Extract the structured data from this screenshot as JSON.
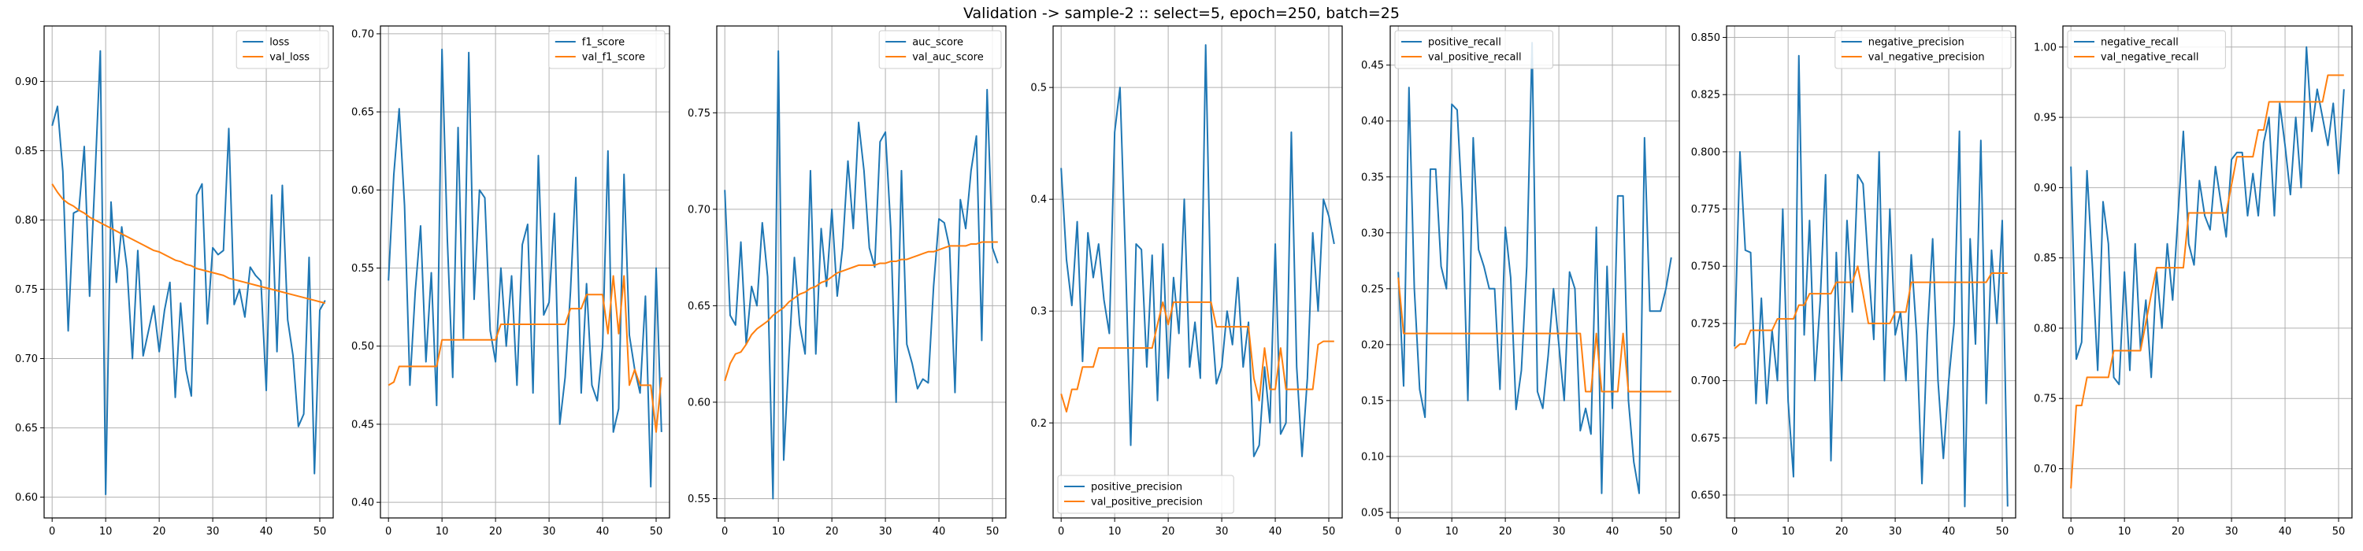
{
  "figure": {
    "title": "Validation -> sample-2 :: select=5, epoch=250, batch=25",
    "colors": {
      "train": "#1f77b4",
      "val": "#ff7f0e",
      "grid": "#b0b0b0",
      "axes": "#000000"
    }
  },
  "chart_data": [
    {
      "type": "line",
      "xlim": [
        -1.5,
        52.5
      ],
      "xticks": [
        0,
        10,
        20,
        30,
        40,
        50
      ],
      "ylim": [
        0.585,
        0.94
      ],
      "yticks": [
        0.6,
        0.65,
        0.7,
        0.75,
        0.8,
        0.85,
        0.9
      ],
      "ytick_labels": [
        "0.60",
        "0.65",
        "0.70",
        "0.75",
        "0.80",
        "0.85",
        "0.90"
      ],
      "legend_loc": "top-right",
      "grid": true,
      "series": [
        {
          "name": "loss",
          "color": "#1f77b4",
          "values": [
            0.868,
            0.882,
            0.835,
            0.72,
            0.805,
            0.807,
            0.853,
            0.745,
            0.83,
            0.922,
            0.602,
            0.813,
            0.755,
            0.795,
            0.765,
            0.7,
            0.778,
            0.702,
            0.72,
            0.738,
            0.705,
            0.735,
            0.755,
            0.672,
            0.74,
            0.692,
            0.673,
            0.818,
            0.826,
            0.725,
            0.78,
            0.775,
            0.778,
            0.866,
            0.739,
            0.75,
            0.73,
            0.766,
            0.76,
            0.756,
            0.677,
            0.818,
            0.705,
            0.825,
            0.728,
            0.702,
            0.651,
            0.66,
            0.773,
            0.617,
            0.735,
            0.742
          ]
        },
        {
          "name": "val_loss",
          "color": "#ff7f0e",
          "values": [
            0.826,
            0.82,
            0.815,
            0.812,
            0.81,
            0.807,
            0.805,
            0.802,
            0.8,
            0.798,
            0.796,
            0.794,
            0.792,
            0.79,
            0.788,
            0.786,
            0.784,
            0.782,
            0.78,
            0.778,
            0.777,
            0.775,
            0.773,
            0.771,
            0.77,
            0.768,
            0.767,
            0.765,
            0.764,
            0.763,
            0.762,
            0.761,
            0.76,
            0.758,
            0.757,
            0.756,
            0.755,
            0.754,
            0.753,
            0.752,
            0.751,
            0.75,
            0.749,
            0.748,
            0.747,
            0.746,
            0.745,
            0.744,
            0.743,
            0.742,
            0.741,
            0.74
          ]
        }
      ]
    },
    {
      "type": "line",
      "xlim": [
        -1.5,
        52.5
      ],
      "xticks": [
        0,
        10,
        20,
        30,
        40,
        50
      ],
      "ylim": [
        0.39,
        0.705
      ],
      "yticks": [
        0.4,
        0.45,
        0.5,
        0.55,
        0.6,
        0.65,
        0.7
      ],
      "ytick_labels": [
        "0.40",
        "0.45",
        "0.50",
        "0.55",
        "0.60",
        "0.65",
        "0.70"
      ],
      "legend_loc": "top-right",
      "grid": true,
      "series": [
        {
          "name": "f1_score",
          "color": "#1f77b4",
          "values": [
            0.542,
            0.61,
            0.652,
            0.59,
            0.475,
            0.535,
            0.577,
            0.49,
            0.547,
            0.462,
            0.69,
            0.568,
            0.48,
            0.64,
            0.505,
            0.688,
            0.53,
            0.6,
            0.595,
            0.51,
            0.49,
            0.55,
            0.5,
            0.545,
            0.475,
            0.565,
            0.578,
            0.47,
            0.622,
            0.52,
            0.528,
            0.585,
            0.45,
            0.48,
            0.535,
            0.608,
            0.47,
            0.54,
            0.475,
            0.465,
            0.5,
            0.625,
            0.445,
            0.46,
            0.61,
            0.507,
            0.485,
            0.47,
            0.532,
            0.41,
            0.55,
            0.445
          ]
        },
        {
          "name": "val_f1_score",
          "color": "#ff7f0e",
          "values": [
            0.475,
            0.477,
            0.487,
            0.487,
            0.487,
            0.487,
            0.487,
            0.487,
            0.487,
            0.487,
            0.504,
            0.504,
            0.504,
            0.504,
            0.504,
            0.504,
            0.504,
            0.504,
            0.504,
            0.504,
            0.504,
            0.514,
            0.514,
            0.514,
            0.514,
            0.514,
            0.514,
            0.514,
            0.514,
            0.514,
            0.514,
            0.514,
            0.514,
            0.514,
            0.524,
            0.524,
            0.524,
            0.533,
            0.533,
            0.533,
            0.533,
            0.508,
            0.545,
            0.508,
            0.545,
            0.475,
            0.485,
            0.475,
            0.475,
            0.475,
            0.445,
            0.48
          ]
        }
      ]
    },
    {
      "type": "line",
      "xlim": [
        -1.5,
        52.5
      ],
      "xticks": [
        0,
        10,
        20,
        30,
        40,
        50
      ],
      "ylim": [
        0.54,
        0.795
      ],
      "yticks": [
        0.55,
        0.6,
        0.65,
        0.7,
        0.75
      ],
      "ytick_labels": [
        "0.55",
        "0.60",
        "0.65",
        "0.70",
        "0.75"
      ],
      "legend_loc": "top-right",
      "grid": true,
      "series": [
        {
          "name": "auc_score",
          "color": "#1f77b4",
          "values": [
            0.71,
            0.645,
            0.64,
            0.683,
            0.63,
            0.66,
            0.65,
            0.693,
            0.665,
            0.55,
            0.782,
            0.57,
            0.625,
            0.675,
            0.64,
            0.625,
            0.72,
            0.625,
            0.69,
            0.66,
            0.7,
            0.655,
            0.68,
            0.725,
            0.69,
            0.745,
            0.72,
            0.68,
            0.67,
            0.735,
            0.74,
            0.69,
            0.6,
            0.72,
            0.63,
            0.62,
            0.607,
            0.612,
            0.61,
            0.66,
            0.695,
            0.693,
            0.68,
            0.605,
            0.705,
            0.69,
            0.72,
            0.738,
            0.632,
            0.762,
            0.68,
            0.672
          ]
        },
        {
          "name": "val_auc_score",
          "color": "#ff7f0e",
          "values": [
            0.611,
            0.62,
            0.625,
            0.626,
            0.63,
            0.635,
            0.638,
            0.64,
            0.642,
            0.645,
            0.647,
            0.649,
            0.652,
            0.654,
            0.656,
            0.657,
            0.659,
            0.66,
            0.662,
            0.663,
            0.665,
            0.667,
            0.668,
            0.669,
            0.67,
            0.671,
            0.671,
            0.671,
            0.671,
            0.672,
            0.672,
            0.673,
            0.673,
            0.674,
            0.674,
            0.675,
            0.676,
            0.677,
            0.678,
            0.678,
            0.679,
            0.68,
            0.681,
            0.681,
            0.681,
            0.681,
            0.682,
            0.682,
            0.683,
            0.683,
            0.683,
            0.683
          ]
        }
      ]
    },
    {
      "type": "line",
      "xlim": [
        -1.5,
        52.5
      ],
      "xticks": [
        0,
        10,
        20,
        30,
        40,
        50
      ],
      "ylim": [
        0.115,
        0.555
      ],
      "yticks": [
        0.2,
        0.3,
        0.4,
        0.5
      ],
      "ytick_labels": [
        "0.2",
        "0.3",
        "0.4",
        "0.5"
      ],
      "legend_loc": "bottom-left",
      "grid": true,
      "series": [
        {
          "name": "positive_precision",
          "color": "#1f77b4",
          "values": [
            0.428,
            0.346,
            0.305,
            0.38,
            0.255,
            0.37,
            0.33,
            0.36,
            0.31,
            0.28,
            0.46,
            0.5,
            0.35,
            0.18,
            0.36,
            0.355,
            0.25,
            0.35,
            0.22,
            0.36,
            0.24,
            0.33,
            0.28,
            0.4,
            0.25,
            0.29,
            0.24,
            0.538,
            0.3,
            0.235,
            0.25,
            0.3,
            0.27,
            0.33,
            0.25,
            0.29,
            0.17,
            0.18,
            0.25,
            0.2,
            0.36,
            0.19,
            0.2,
            0.46,
            0.25,
            0.17,
            0.24,
            0.37,
            0.3,
            0.4,
            0.385,
            0.36
          ]
        },
        {
          "name": "val_positive_precision",
          "color": "#ff7f0e",
          "values": [
            0.226,
            0.21,
            0.23,
            0.23,
            0.25,
            0.25,
            0.25,
            0.267,
            0.267,
            0.267,
            0.267,
            0.267,
            0.267,
            0.267,
            0.267,
            0.267,
            0.267,
            0.267,
            0.288,
            0.308,
            0.288,
            0.308,
            0.308,
            0.308,
            0.308,
            0.308,
            0.308,
            0.308,
            0.308,
            0.286,
            0.286,
            0.286,
            0.286,
            0.286,
            0.286,
            0.286,
            0.24,
            0.22,
            0.267,
            0.23,
            0.23,
            0.267,
            0.23,
            0.23,
            0.23,
            0.23,
            0.23,
            0.23,
            0.27,
            0.273,
            0.273,
            0.273
          ]
        }
      ]
    },
    {
      "type": "line",
      "xlim": [
        -1.5,
        52.5
      ],
      "xticks": [
        0,
        10,
        20,
        30,
        40,
        50
      ],
      "ylim": [
        0.045,
        0.485
      ],
      "yticks": [
        0.05,
        0.1,
        0.15,
        0.2,
        0.25,
        0.3,
        0.35,
        0.4,
        0.45
      ],
      "ytick_labels": [
        "0.05",
        "0.10",
        "0.15",
        "0.20",
        "0.25",
        "0.30",
        "0.35",
        "0.40",
        "0.45"
      ],
      "legend_loc": "top-left",
      "grid": true,
      "series": [
        {
          "name": "positive_recall",
          "color": "#1f77b4",
          "values": [
            0.265,
            0.163,
            0.43,
            0.25,
            0.16,
            0.135,
            0.357,
            0.357,
            0.27,
            0.25,
            0.415,
            0.41,
            0.32,
            0.15,
            0.385,
            0.285,
            0.27,
            0.25,
            0.25,
            0.16,
            0.305,
            0.26,
            0.142,
            0.177,
            0.27,
            0.47,
            0.158,
            0.143,
            0.19,
            0.25,
            0.2,
            0.15,
            0.265,
            0.25,
            0.123,
            0.143,
            0.12,
            0.305,
            0.067,
            0.27,
            0.143,
            0.333,
            0.333,
            0.15,
            0.095,
            0.067,
            0.385,
            0.23,
            0.23,
            0.23,
            0.25,
            0.278
          ]
        },
        {
          "name": "val_positive_recall",
          "color": "#ff7f0e",
          "values": [
            0.26,
            0.21,
            0.21,
            0.21,
            0.21,
            0.21,
            0.21,
            0.21,
            0.21,
            0.21,
            0.21,
            0.21,
            0.21,
            0.21,
            0.21,
            0.21,
            0.21,
            0.21,
            0.21,
            0.21,
            0.21,
            0.21,
            0.21,
            0.21,
            0.21,
            0.21,
            0.21,
            0.21,
            0.21,
            0.21,
            0.21,
            0.21,
            0.21,
            0.21,
            0.21,
            0.158,
            0.158,
            0.21,
            0.158,
            0.158,
            0.158,
            0.158,
            0.21,
            0.158,
            0.158,
            0.158,
            0.158,
            0.158,
            0.158,
            0.158,
            0.158,
            0.158
          ]
        }
      ]
    },
    {
      "type": "line",
      "xlim": [
        -1.5,
        52.5
      ],
      "xticks": [
        0,
        10,
        20,
        30,
        40,
        50
      ],
      "ylim": [
        0.64,
        0.855
      ],
      "yticks": [
        0.65,
        0.675,
        0.7,
        0.725,
        0.75,
        0.775,
        0.8,
        0.825,
        0.85
      ],
      "ytick_labels": [
        "0.650",
        "0.675",
        "0.700",
        "0.725",
        "0.750",
        "0.775",
        "0.800",
        "0.825",
        "0.850"
      ],
      "legend_loc": "top-right",
      "grid": true,
      "series": [
        {
          "name": "negative_precision",
          "color": "#1f77b4",
          "values": [
            0.715,
            0.8,
            0.757,
            0.756,
            0.69,
            0.736,
            0.69,
            0.722,
            0.7,
            0.775,
            0.691,
            0.658,
            0.842,
            0.72,
            0.77,
            0.7,
            0.735,
            0.79,
            0.665,
            0.756,
            0.7,
            0.77,
            0.73,
            0.79,
            0.786,
            0.75,
            0.718,
            0.8,
            0.7,
            0.775,
            0.72,
            0.73,
            0.7,
            0.755,
            0.72,
            0.655,
            0.72,
            0.762,
            0.7,
            0.666,
            0.7,
            0.725,
            0.809,
            0.645,
            0.762,
            0.716,
            0.805,
            0.69,
            0.757,
            0.725,
            0.77,
            0.645
          ]
        },
        {
          "name": "val_negative_precision",
          "color": "#ff7f0e",
          "values": [
            0.714,
            0.716,
            0.716,
            0.722,
            0.722,
            0.722,
            0.722,
            0.722,
            0.727,
            0.727,
            0.727,
            0.727,
            0.733,
            0.733,
            0.738,
            0.738,
            0.738,
            0.738,
            0.738,
            0.743,
            0.743,
            0.743,
            0.743,
            0.75,
            0.738,
            0.725,
            0.725,
            0.725,
            0.725,
            0.725,
            0.73,
            0.73,
            0.73,
            0.743,
            0.743,
            0.743,
            0.743,
            0.743,
            0.743,
            0.743,
            0.743,
            0.743,
            0.743,
            0.743,
            0.743,
            0.743,
            0.743,
            0.743,
            0.747,
            0.747,
            0.747,
            0.747
          ]
        }
      ]
    },
    {
      "type": "line",
      "xlim": [
        -1.5,
        52.5
      ],
      "xticks": [
        0,
        10,
        20,
        30,
        40,
        50
      ],
      "ylim": [
        0.665,
        1.015
      ],
      "yticks": [
        0.7,
        0.75,
        0.8,
        0.85,
        0.9,
        0.95,
        1.0
      ],
      "ytick_labels": [
        "0.70",
        "0.75",
        "0.80",
        "0.85",
        "0.90",
        "0.95",
        "1.00"
      ],
      "legend_loc": "top-left",
      "grid": true,
      "series": [
        {
          "name": "negative_recall",
          "color": "#1f77b4",
          "values": [
            0.915,
            0.778,
            0.79,
            0.912,
            0.845,
            0.77,
            0.89,
            0.86,
            0.765,
            0.76,
            0.84,
            0.77,
            0.86,
            0.785,
            0.82,
            0.765,
            0.84,
            0.8,
            0.86,
            0.82,
            0.88,
            0.94,
            0.86,
            0.845,
            0.905,
            0.88,
            0.87,
            0.915,
            0.89,
            0.865,
            0.92,
            0.925,
            0.925,
            0.88,
            0.91,
            0.88,
            0.932,
            0.95,
            0.88,
            0.96,
            0.93,
            0.895,
            0.95,
            0.9,
            1.0,
            0.94,
            0.97,
            0.95,
            0.93,
            0.96,
            0.91,
            0.97
          ]
        },
        {
          "name": "val_negative_recall",
          "color": "#ff7f0e",
          "values": [
            0.686,
            0.745,
            0.745,
            0.765,
            0.765,
            0.765,
            0.765,
            0.765,
            0.784,
            0.784,
            0.784,
            0.784,
            0.784,
            0.784,
            0.804,
            0.824,
            0.843,
            0.843,
            0.843,
            0.843,
            0.843,
            0.843,
            0.882,
            0.882,
            0.882,
            0.882,
            0.882,
            0.882,
            0.882,
            0.882,
            0.902,
            0.922,
            0.922,
            0.922,
            0.922,
            0.941,
            0.941,
            0.961,
            0.961,
            0.961,
            0.961,
            0.961,
            0.961,
            0.961,
            0.961,
            0.961,
            0.961,
            0.961,
            0.98,
            0.98,
            0.98,
            0.98
          ]
        }
      ]
    }
  ]
}
